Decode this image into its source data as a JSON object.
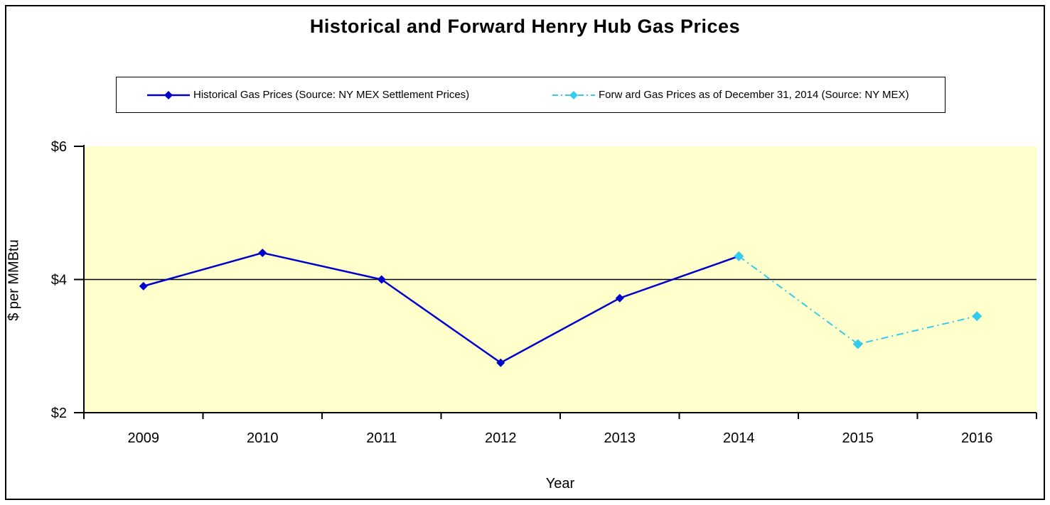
{
  "window_title": "Historical and Forward Henry Hub Gas Prices",
  "chart_data": {
    "type": "line",
    "title": "Historical and Forward Henry Hub Gas Prices",
    "xlabel": "Year",
    "ylabel": "$ per MMBtu",
    "categories": [
      "2009",
      "2010",
      "2011",
      "2012",
      "2013",
      "2014",
      "2015",
      "2016"
    ],
    "ylim": [
      2,
      6
    ],
    "y_ticks": [
      {
        "label": "$2",
        "value": 2
      },
      {
        "label": "$4",
        "value": 4
      },
      {
        "label": "$6",
        "value": 6
      }
    ],
    "gridline_values": [
      4
    ],
    "legend_position": "top",
    "plot_bg_color": "#FFFFCC",
    "axis_color": "#000000",
    "series": [
      {
        "name": "Historical Gas Prices (Source: NY MEX Settlement Prices)",
        "color": "#0000CC",
        "line_style": "solid",
        "marker": "diamond",
        "x": [
          "2009",
          "2010",
          "2011",
          "2012",
          "2013",
          "2014"
        ],
        "values": [
          3.9,
          4.4,
          4.0,
          2.75,
          3.72,
          4.35
        ]
      },
      {
        "name": "Forw ard Gas Prices as of December 31, 2014 (Source: NY MEX)",
        "color": "#33CCEE",
        "line_style": "dash-dot",
        "marker": "diamond",
        "x": [
          "2014",
          "2015",
          "2016"
        ],
        "values": [
          4.35,
          3.03,
          3.45
        ]
      }
    ]
  }
}
